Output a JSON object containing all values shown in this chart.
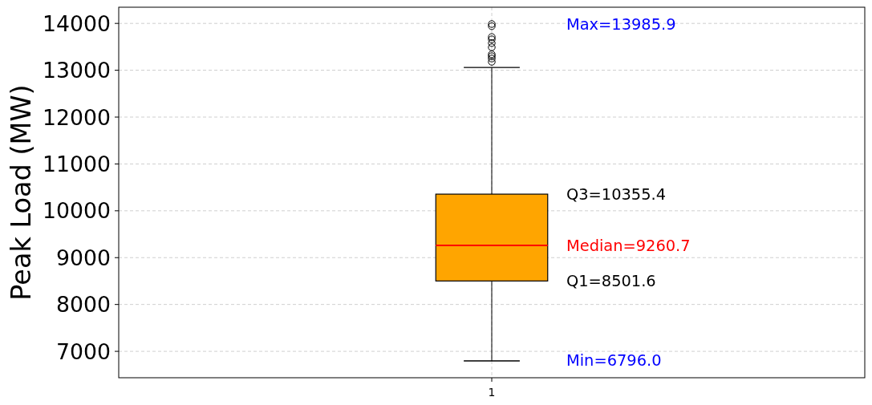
{
  "chart_data": {
    "type": "box",
    "ylabel": "Peak Load (MW)",
    "categories": [
      "1"
    ],
    "boxes": [
      {
        "low": 6796.0,
        "q1": 8501.6,
        "median": 9260.7,
        "q3": 10355.4,
        "high": 13060,
        "outliers": [
          13985.9,
          13940,
          13710,
          13660,
          13580,
          13490,
          13340,
          13300,
          13250,
          13180
        ]
      }
    ],
    "color": "#ffa500",
    "ylim": [
      6436.5,
      14345.4
    ],
    "yticks": [
      7000,
      8000,
      9000,
      10000,
      11000,
      12000,
      13000,
      14000
    ],
    "grid": true,
    "annotations": [
      "Max=13985.9",
      "Q3=10355.4",
      "Median=9260.7",
      "Q1=8501.6",
      "Min=6796.0"
    ]
  }
}
